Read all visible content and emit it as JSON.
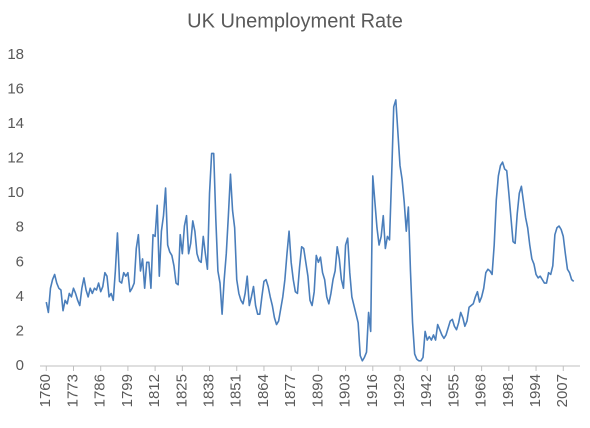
{
  "chart_data": {
    "type": "line",
    "title": "UK Unemployment Rate",
    "x": [
      1760,
      1761,
      1762,
      1763,
      1764,
      1765,
      1766,
      1767,
      1768,
      1769,
      1770,
      1771,
      1772,
      1773,
      1774,
      1775,
      1776,
      1777,
      1778,
      1779,
      1780,
      1781,
      1782,
      1783,
      1784,
      1785,
      1786,
      1787,
      1788,
      1789,
      1790,
      1791,
      1792,
      1793,
      1794,
      1795,
      1796,
      1797,
      1798,
      1799,
      1800,
      1801,
      1802,
      1803,
      1804,
      1805,
      1806,
      1807,
      1808,
      1809,
      1810,
      1811,
      1812,
      1813,
      1814,
      1815,
      1816,
      1817,
      1818,
      1819,
      1820,
      1821,
      1822,
      1823,
      1824,
      1825,
      1826,
      1827,
      1828,
      1829,
      1830,
      1831,
      1832,
      1833,
      1834,
      1835,
      1836,
      1837,
      1838,
      1839,
      1840,
      1841,
      1842,
      1843,
      1844,
      1845,
      1846,
      1847,
      1848,
      1849,
      1850,
      1851,
      1852,
      1853,
      1854,
      1855,
      1856,
      1857,
      1858,
      1859,
      1860,
      1861,
      1862,
      1863,
      1864,
      1865,
      1866,
      1867,
      1868,
      1869,
      1870,
      1871,
      1872,
      1873,
      1874,
      1875,
      1876,
      1877,
      1878,
      1879,
      1880,
      1881,
      1882,
      1883,
      1884,
      1885,
      1886,
      1887,
      1888,
      1889,
      1890,
      1891,
      1892,
      1893,
      1894,
      1895,
      1896,
      1897,
      1898,
      1899,
      1900,
      1901,
      1902,
      1903,
      1904,
      1905,
      1906,
      1907,
      1908,
      1909,
      1910,
      1911,
      1912,
      1913,
      1914,
      1915,
      1916,
      1917,
      1918,
      1919,
      1920,
      1921,
      1922,
      1923,
      1924,
      1925,
      1926,
      1927,
      1928,
      1929,
      1930,
      1931,
      1932,
      1933,
      1934,
      1935,
      1936,
      1937,
      1938,
      1939,
      1940,
      1941,
      1942,
      1943,
      1944,
      1945,
      1946,
      1947,
      1948,
      1949,
      1950,
      1951,
      1952,
      1953,
      1954,
      1955,
      1956,
      1957,
      1958,
      1959,
      1960,
      1961,
      1962,
      1963,
      1964,
      1965,
      1966,
      1967,
      1968,
      1969,
      1970,
      1971,
      1972,
      1973,
      1974,
      1975,
      1976,
      1977,
      1978,
      1979,
      1980,
      1981,
      1982,
      1983,
      1984,
      1985,
      1986,
      1987,
      1988,
      1989,
      1990,
      1991,
      1992,
      1993,
      1994,
      1995,
      1996,
      1997,
      1998,
      1999,
      2000,
      2001,
      2002,
      2003,
      2004,
      2005,
      2006,
      2007,
      2008,
      2009,
      2010,
      2011,
      2012
    ],
    "series": [
      {
        "name": "Unemployment rate",
        "color": "#4a7ebb",
        "values": [
          3.7,
          3.1,
          4.5,
          5.0,
          5.3,
          4.8,
          4.5,
          4.4,
          3.2,
          3.8,
          3.6,
          4.2,
          4.0,
          4.5,
          4.2,
          3.8,
          3.5,
          4.5,
          5.1,
          4.4,
          4.0,
          4.5,
          4.2,
          4.5,
          4.4,
          4.8,
          4.3,
          4.6,
          5.4,
          5.2,
          4.0,
          4.2,
          3.8,
          5.5,
          7.7,
          4.9,
          4.8,
          5.4,
          5.2,
          5.4,
          4.3,
          4.5,
          4.8,
          6.8,
          7.6,
          5.5,
          6.2,
          4.5,
          6.0,
          6.0,
          4.5,
          7.6,
          7.5,
          9.3,
          5.2,
          7.8,
          8.7,
          10.3,
          7.0,
          6.6,
          6.4,
          5.8,
          4.8,
          4.7,
          7.6,
          6.5,
          8.1,
          8.7,
          6.5,
          7.1,
          8.4,
          7.8,
          6.5,
          6.1,
          6.0,
          7.5,
          6.5,
          5.6,
          10.0,
          12.3,
          12.3,
          8.5,
          5.5,
          4.8,
          3.0,
          5.0,
          6.5,
          8.7,
          11.1,
          9.0,
          8.0,
          5.0,
          4.2,
          3.8,
          3.6,
          4.2,
          5.2,
          3.5,
          4.0,
          4.6,
          3.5,
          3.0,
          3.0,
          4.0,
          4.9,
          5.0,
          4.6,
          4.0,
          3.5,
          2.8,
          2.4,
          2.6,
          3.3,
          4.0,
          5.0,
          6.5,
          7.8,
          6.0,
          5.0,
          4.3,
          4.2,
          5.7,
          6.9,
          6.8,
          6.0,
          5.2,
          3.8,
          3.5,
          4.3,
          6.4,
          6.0,
          6.3,
          5.4,
          5.0,
          4.0,
          3.6,
          4.2,
          5.0,
          5.5,
          6.9,
          6.2,
          5.0,
          4.5,
          7.0,
          7.4,
          5.4,
          4.0,
          3.5,
          3.0,
          2.5,
          0.6,
          0.3,
          0.5,
          0.8,
          3.1,
          2.0,
          11.0,
          9.5,
          8.0,
          7.0,
          7.5,
          8.7,
          6.8,
          7.5,
          7.3,
          11.0,
          15.0,
          15.4,
          13.5,
          11.6,
          10.8,
          9.5,
          7.8,
          9.2,
          5.5,
          2.5,
          0.7,
          0.4,
          0.3,
          0.3,
          0.5,
          2.0,
          1.5,
          1.7,
          1.5,
          1.8,
          1.5,
          2.4,
          2.1,
          1.8,
          1.6,
          1.8,
          2.2,
          2.6,
          2.7,
          2.3,
          2.1,
          2.5,
          3.1,
          2.8,
          2.3,
          2.6,
          3.4,
          3.5,
          3.6,
          4.0,
          4.3,
          3.7,
          4.0,
          4.5,
          5.4,
          5.6,
          5.5,
          5.3,
          7.0,
          9.6,
          11.0,
          11.6,
          11.8,
          11.4,
          11.3,
          10.0,
          8.6,
          7.2,
          7.1,
          8.8,
          10.0,
          10.4,
          9.5,
          8.6,
          8.0,
          7.0,
          6.2,
          5.9,
          5.3,
          5.1,
          5.2,
          5.0,
          4.8,
          4.8,
          5.4,
          5.3,
          5.8,
          7.6,
          8.0,
          8.1,
          7.9,
          7.5,
          6.5,
          5.6,
          5.4,
          5.0,
          4.9
        ]
      }
    ],
    "xlim": [
      1757,
      2015
    ],
    "xticks": [
      1760,
      1773,
      1786,
      1799,
      1812,
      1825,
      1838,
      1851,
      1864,
      1877,
      1890,
      1903,
      1916,
      1929,
      1942,
      1955,
      1968,
      1981,
      1994,
      2007
    ],
    "ylim": [
      0,
      18
    ],
    "yticks": [
      0,
      2,
      4,
      6,
      8,
      10,
      12,
      14,
      16,
      18
    ],
    "grid": false
  }
}
